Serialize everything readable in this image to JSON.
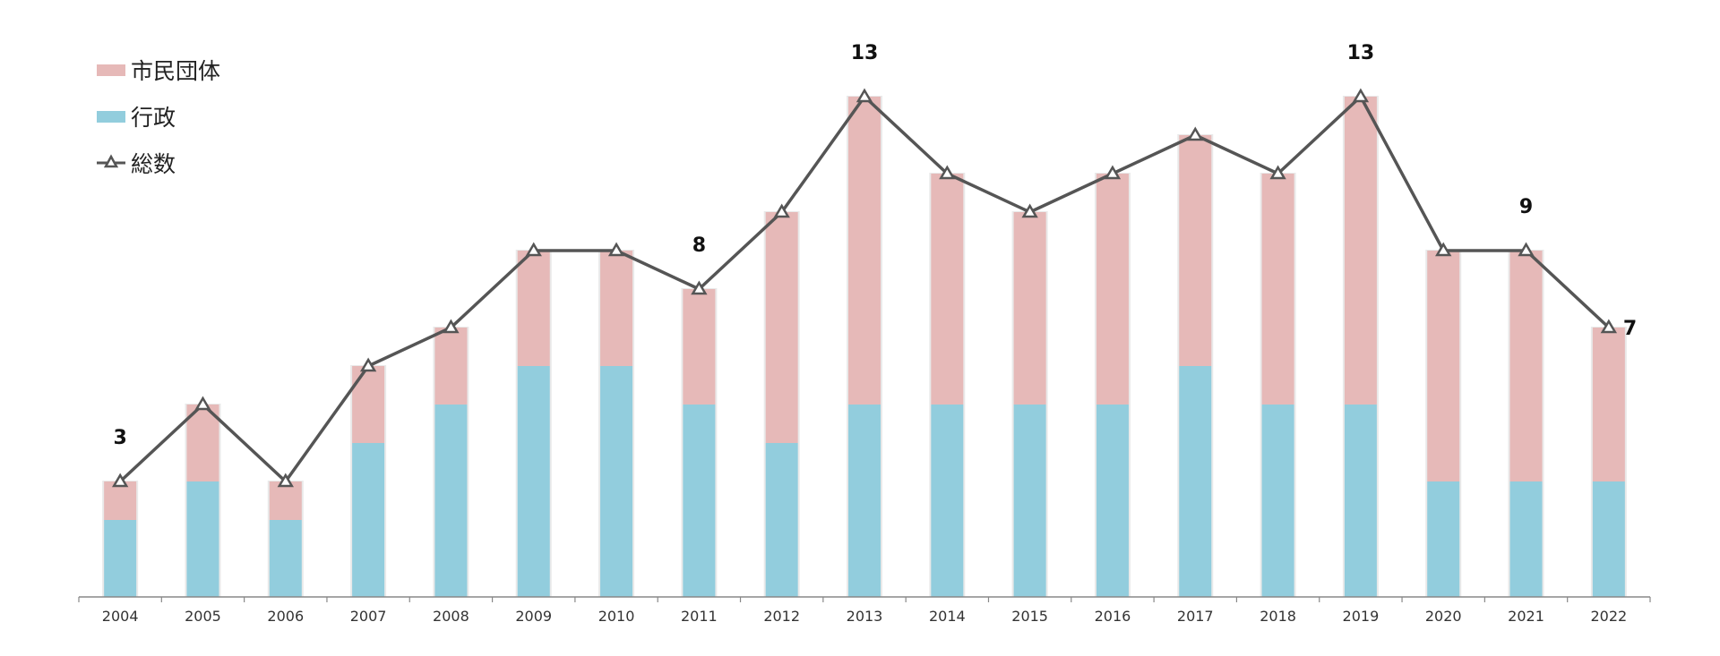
{
  "chart_data": {
    "type": "bar",
    "stacked": true,
    "categories": [
      "2004",
      "2005",
      "2006",
      "2007",
      "2008",
      "2009",
      "2010",
      "2011",
      "2012",
      "2013",
      "2014",
      "2015",
      "2016",
      "2017",
      "2018",
      "2019",
      "2020",
      "2021",
      "2022"
    ],
    "series": [
      {
        "name": "行政",
        "type": "bar",
        "color": "#92CDDD",
        "values": [
          2,
          3,
          2,
          4,
          5,
          6,
          6,
          5,
          4,
          5,
          5,
          5,
          5,
          6,
          5,
          5,
          3,
          3,
          3
        ]
      },
      {
        "name": "市民団体",
        "type": "bar",
        "color": "#E6B9B8",
        "values": [
          1,
          2,
          1,
          2,
          2,
          3,
          3,
          3,
          6,
          8,
          6,
          5,
          6,
          6,
          6,
          8,
          6,
          6,
          4
        ]
      },
      {
        "name": "総数",
        "type": "line",
        "marker": "triangle",
        "color": "#555555",
        "values": [
          3,
          5,
          3,
          6,
          7,
          9,
          9,
          8,
          10,
          13,
          11,
          10,
          11,
          12,
          11,
          13,
          9,
          9,
          7
        ]
      }
    ],
    "data_labels": [
      {
        "category": "2004",
        "value": "3"
      },
      {
        "category": "2011",
        "value": "8"
      },
      {
        "category": "2013",
        "value": "13"
      },
      {
        "category": "2019",
        "value": "13"
      },
      {
        "category": "2021",
        "value": "9"
      },
      {
        "category": "2022",
        "value": "7"
      }
    ],
    "ylim": [
      0,
      13
    ],
    "grid": false,
    "legend": "top-left"
  }
}
